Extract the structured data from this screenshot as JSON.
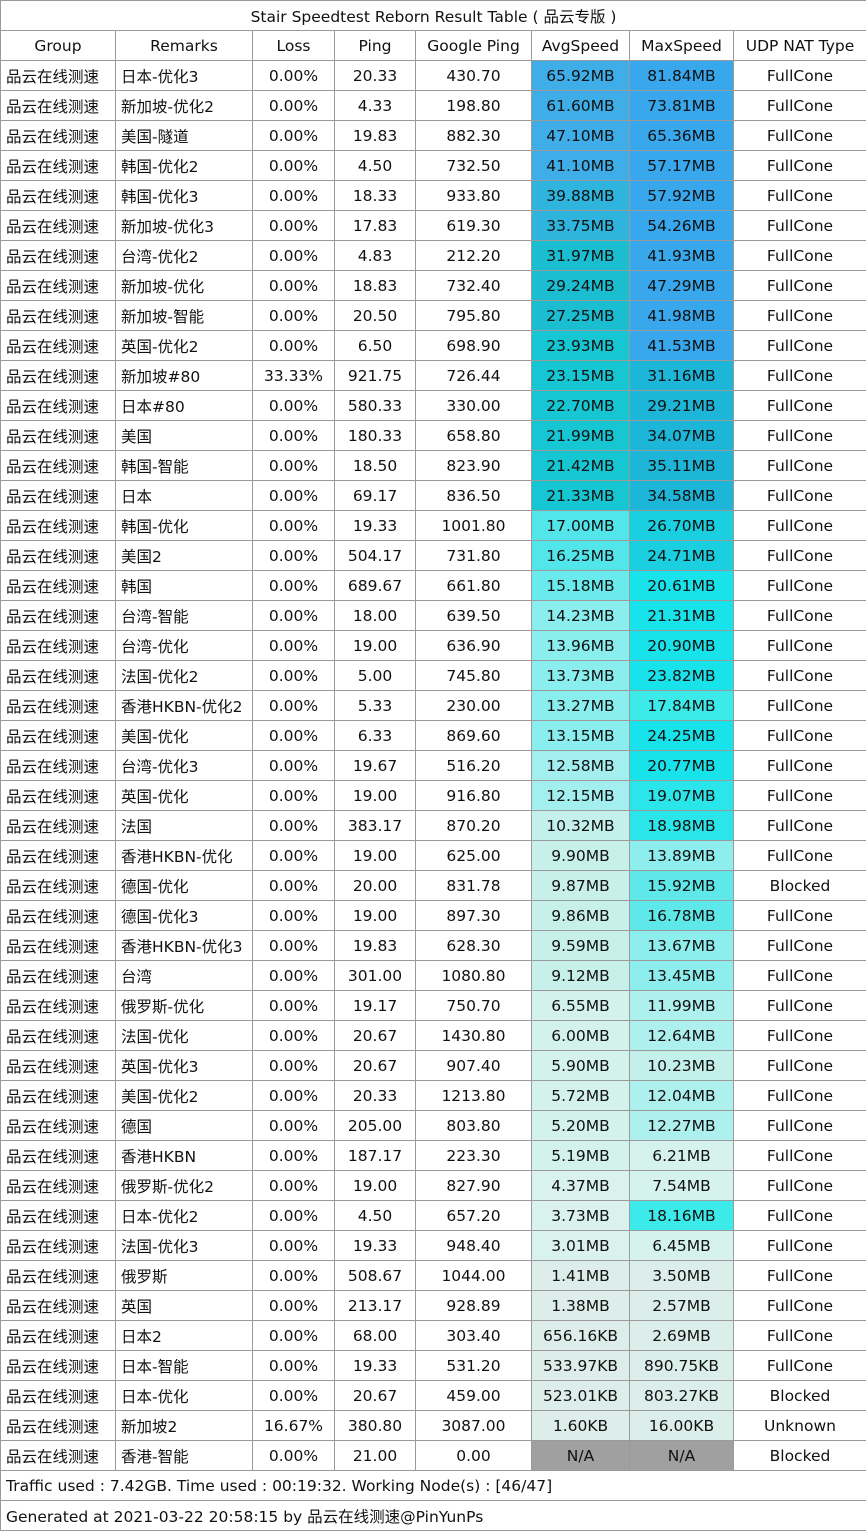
{
  "title": "Stair Speedtest Reborn Result Table ( 品云专版 )",
  "headers": [
    "Group",
    "Remarks",
    "Loss",
    "Ping",
    "Google Ping",
    "AvgSpeed",
    "MaxSpeed",
    "UDP NAT Type"
  ],
  "rows": [
    {
      "group": "品云在线测速",
      "remarks": "日本-优化3",
      "loss": "0.00%",
      "ping": "20.33",
      "gping": "430.70",
      "avg": "65.92MB",
      "max": "81.84MB",
      "nat": "FullCone",
      "avg_color": "#3faee8",
      "max_color": "#38a7ec"
    },
    {
      "group": "品云在线测速",
      "remarks": "新加坡-优化2",
      "loss": "0.00%",
      "ping": "4.33",
      "gping": "198.80",
      "avg": "61.60MB",
      "max": "73.81MB",
      "nat": "FullCone",
      "avg_color": "#3faee8",
      "max_color": "#38a7ec"
    },
    {
      "group": "品云在线测速",
      "remarks": "美国-隧道",
      "loss": "0.00%",
      "ping": "19.83",
      "gping": "882.30",
      "avg": "47.10MB",
      "max": "65.36MB",
      "nat": "FullCone",
      "avg_color": "#3faee8",
      "max_color": "#38a7ec"
    },
    {
      "group": "品云在线测速",
      "remarks": "韩国-优化2",
      "loss": "0.00%",
      "ping": "4.50",
      "gping": "732.50",
      "avg": "41.10MB",
      "max": "57.17MB",
      "nat": "FullCone",
      "avg_color": "#3faee8",
      "max_color": "#38a7ec"
    },
    {
      "group": "品云在线测速",
      "remarks": "韩国-优化3",
      "loss": "0.00%",
      "ping": "18.33",
      "gping": "933.80",
      "avg": "39.88MB",
      "max": "57.92MB",
      "nat": "FullCone",
      "avg_color": "#2fb5dd",
      "max_color": "#38a7ec"
    },
    {
      "group": "品云在线测速",
      "remarks": "新加坡-优化3",
      "loss": "0.00%",
      "ping": "17.83",
      "gping": "619.30",
      "avg": "33.75MB",
      "max": "54.26MB",
      "nat": "FullCone",
      "avg_color": "#2fb5dd",
      "max_color": "#38a7ec"
    },
    {
      "group": "品云在线测速",
      "remarks": "台湾-优化2",
      "loss": "0.00%",
      "ping": "4.83",
      "gping": "212.20",
      "avg": "31.97MB",
      "max": "41.93MB",
      "nat": "FullCone",
      "avg_color": "#1bbdd1",
      "max_color": "#38a7ec"
    },
    {
      "group": "品云在线测速",
      "remarks": "新加坡-优化",
      "loss": "0.00%",
      "ping": "18.83",
      "gping": "732.40",
      "avg": "29.24MB",
      "max": "47.29MB",
      "nat": "FullCone",
      "avg_color": "#1bbdd1",
      "max_color": "#38a7ec"
    },
    {
      "group": "品云在线测速",
      "remarks": "新加坡-智能",
      "loss": "0.00%",
      "ping": "20.50",
      "gping": "795.80",
      "avg": "27.25MB",
      "max": "41.98MB",
      "nat": "FullCone",
      "avg_color": "#1bbdd1",
      "max_color": "#38a7ec"
    },
    {
      "group": "品云在线测速",
      "remarks": "英国-优化2",
      "loss": "0.00%",
      "ping": "6.50",
      "gping": "698.90",
      "avg": "23.93MB",
      "max": "41.53MB",
      "nat": "FullCone",
      "avg_color": "#16c6d3",
      "max_color": "#38a7ec"
    },
    {
      "group": "品云在线测速",
      "remarks": "新加坡#80",
      "loss": "33.33%",
      "ping": "921.75",
      "gping": "726.44",
      "avg": "23.15MB",
      "max": "31.16MB",
      "nat": "FullCone",
      "avg_color": "#16c6d3",
      "max_color": "#1db6d8"
    },
    {
      "group": "品云在线测速",
      "remarks": "日本#80",
      "loss": "0.00%",
      "ping": "580.33",
      "gping": "330.00",
      "avg": "22.70MB",
      "max": "29.21MB",
      "nat": "FullCone",
      "avg_color": "#16c6d3",
      "max_color": "#1db6d8"
    },
    {
      "group": "品云在线测速",
      "remarks": "美国",
      "loss": "0.00%",
      "ping": "180.33",
      "gping": "658.80",
      "avg": "21.99MB",
      "max": "34.07MB",
      "nat": "FullCone",
      "avg_color": "#16c6d3",
      "max_color": "#1db6d8"
    },
    {
      "group": "品云在线测速",
      "remarks": "韩国-智能",
      "loss": "0.00%",
      "ping": "18.50",
      "gping": "823.90",
      "avg": "21.42MB",
      "max": "35.11MB",
      "nat": "FullCone",
      "avg_color": "#16c6d3",
      "max_color": "#1db6d8"
    },
    {
      "group": "品云在线测速",
      "remarks": "日本",
      "loss": "0.00%",
      "ping": "69.17",
      "gping": "836.50",
      "avg": "21.33MB",
      "max": "34.58MB",
      "nat": "FullCone",
      "avg_color": "#16c6d3",
      "max_color": "#1db6d8"
    },
    {
      "group": "品云在线测速",
      "remarks": "韩国-优化",
      "loss": "0.00%",
      "ping": "19.33",
      "gping": "1001.80",
      "avg": "17.00MB",
      "max": "26.70MB",
      "nat": "FullCone",
      "avg_color": "#52e6ea",
      "max_color": "#19cfe0"
    },
    {
      "group": "品云在线测速",
      "remarks": "美国2",
      "loss": "0.00%",
      "ping": "504.17",
      "gping": "731.80",
      "avg": "16.25MB",
      "max": "24.71MB",
      "nat": "FullCone",
      "avg_color": "#52e6ea",
      "max_color": "#19cfe0"
    },
    {
      "group": "品云在线测速",
      "remarks": "韩国",
      "loss": "0.00%",
      "ping": "689.67",
      "gping": "661.80",
      "avg": "15.18MB",
      "max": "20.61MB",
      "nat": "FullCone",
      "avg_color": "#6aeaec",
      "max_color": "#19e3ea"
    },
    {
      "group": "品云在线测速",
      "remarks": "台湾-智能",
      "loss": "0.00%",
      "ping": "18.00",
      "gping": "639.50",
      "avg": "14.23MB",
      "max": "21.31MB",
      "nat": "FullCone",
      "avg_color": "#8aeeee",
      "max_color": "#19e3ea"
    },
    {
      "group": "品云在线测速",
      "remarks": "台湾-优化",
      "loss": "0.00%",
      "ping": "19.00",
      "gping": "636.90",
      "avg": "13.96MB",
      "max": "20.90MB",
      "nat": "FullCone",
      "avg_color": "#8aeeee",
      "max_color": "#19e3ea"
    },
    {
      "group": "品云在线测速",
      "remarks": "法国-优化2",
      "loss": "0.00%",
      "ping": "5.00",
      "gping": "745.80",
      "avg": "13.73MB",
      "max": "23.82MB",
      "nat": "FullCone",
      "avg_color": "#8aeeee",
      "max_color": "#19e3ea"
    },
    {
      "group": "品云在线测速",
      "remarks": "香港HKBN-优化2",
      "loss": "0.00%",
      "ping": "5.33",
      "gping": "230.00",
      "avg": "13.27MB",
      "max": "17.84MB",
      "nat": "FullCone",
      "avg_color": "#8aeeee",
      "max_color": "#3deaea"
    },
    {
      "group": "品云在线测速",
      "remarks": "美国-优化",
      "loss": "0.00%",
      "ping": "6.33",
      "gping": "869.60",
      "avg": "13.15MB",
      "max": "24.25MB",
      "nat": "FullCone",
      "avg_color": "#8aeeee",
      "max_color": "#19e3ea"
    },
    {
      "group": "品云在线测速",
      "remarks": "台湾-优化3",
      "loss": "0.00%",
      "ping": "19.67",
      "gping": "516.20",
      "avg": "12.58MB",
      "max": "20.77MB",
      "nat": "FullCone",
      "avg_color": "#a3efef",
      "max_color": "#19e3ea"
    },
    {
      "group": "品云在线测速",
      "remarks": "英国-优化",
      "loss": "0.00%",
      "ping": "19.00",
      "gping": "916.80",
      "avg": "12.15MB",
      "max": "19.07MB",
      "nat": "FullCone",
      "avg_color": "#a3efef",
      "max_color": "#2ae6ea"
    },
    {
      "group": "品云在线测速",
      "remarks": "法国",
      "loss": "0.00%",
      "ping": "383.17",
      "gping": "870.20",
      "avg": "10.32MB",
      "max": "18.98MB",
      "nat": "FullCone",
      "avg_color": "#c4f0ec",
      "max_color": "#2ae6ea"
    },
    {
      "group": "品云在线测速",
      "remarks": "香港HKBN-优化",
      "loss": "0.00%",
      "ping": "19.00",
      "gping": "625.00",
      "avg": "9.90MB",
      "max": "13.89MB",
      "nat": "FullCone",
      "avg_color": "#c8f0ea",
      "max_color": "#8eeeee"
    },
    {
      "group": "品云在线测速",
      "remarks": "德国-优化",
      "loss": "0.00%",
      "ping": "20.00",
      "gping": "831.78",
      "avg": "9.87MB",
      "max": "15.92MB",
      "nat": "Blocked",
      "avg_color": "#c8f0ea",
      "max_color": "#5ee8ea"
    },
    {
      "group": "品云在线测速",
      "remarks": "德国-优化3",
      "loss": "0.00%",
      "ping": "19.00",
      "gping": "897.30",
      "avg": "9.86MB",
      "max": "16.78MB",
      "nat": "FullCone",
      "avg_color": "#c8f0ea",
      "max_color": "#5ee8ea"
    },
    {
      "group": "品云在线测速",
      "remarks": "香港HKBN-优化3",
      "loss": "0.00%",
      "ping": "19.83",
      "gping": "628.30",
      "avg": "9.59MB",
      "max": "13.67MB",
      "nat": "FullCone",
      "avg_color": "#c8f0ea",
      "max_color": "#8eeeee"
    },
    {
      "group": "品云在线测速",
      "remarks": "台湾",
      "loss": "0.00%",
      "ping": "301.00",
      "gping": "1080.80",
      "avg": "9.12MB",
      "max": "13.45MB",
      "nat": "FullCone",
      "avg_color": "#c8f0ea",
      "max_color": "#8eeeee"
    },
    {
      "group": "品云在线测速",
      "remarks": "俄罗斯-优化",
      "loss": "0.00%",
      "ping": "19.17",
      "gping": "750.70",
      "avg": "6.55MB",
      "max": "11.99MB",
      "nat": "FullCone",
      "avg_color": "#d3f2eb",
      "max_color": "#aef0ee"
    },
    {
      "group": "品云在线测速",
      "remarks": "法国-优化",
      "loss": "0.00%",
      "ping": "20.67",
      "gping": "1430.80",
      "avg": "6.00MB",
      "max": "12.64MB",
      "nat": "FullCone",
      "avg_color": "#d3f2eb",
      "max_color": "#aef0ee"
    },
    {
      "group": "品云在线测速",
      "remarks": "英国-优化3",
      "loss": "0.00%",
      "ping": "20.67",
      "gping": "907.40",
      "avg": "5.90MB",
      "max": "10.23MB",
      "nat": "FullCone",
      "avg_color": "#d3f2eb",
      "max_color": "#c4f0ec"
    },
    {
      "group": "品云在线测速",
      "remarks": "美国-优化2",
      "loss": "0.00%",
      "ping": "20.33",
      "gping": "1213.80",
      "avg": "5.72MB",
      "max": "12.04MB",
      "nat": "FullCone",
      "avg_color": "#d3f2eb",
      "max_color": "#aef0ee"
    },
    {
      "group": "品云在线测速",
      "remarks": "德国",
      "loss": "0.00%",
      "ping": "205.00",
      "gping": "803.80",
      "avg": "5.20MB",
      "max": "12.27MB",
      "nat": "FullCone",
      "avg_color": "#d3f2eb",
      "max_color": "#aef0ee"
    },
    {
      "group": "品云在线测速",
      "remarks": "香港HKBN",
      "loss": "0.00%",
      "ping": "187.17",
      "gping": "223.30",
      "avg": "5.19MB",
      "max": "6.21MB",
      "nat": "FullCone",
      "avg_color": "#d3f2eb",
      "max_color": "#d6f2ec"
    },
    {
      "group": "品云在线测速",
      "remarks": "俄罗斯-优化2",
      "loss": "0.00%",
      "ping": "19.00",
      "gping": "827.90",
      "avg": "4.37MB",
      "max": "7.54MB",
      "nat": "FullCone",
      "avg_color": "#d9f2ed",
      "max_color": "#d6f2ec"
    },
    {
      "group": "品云在线测速",
      "remarks": "日本-优化2",
      "loss": "0.00%",
      "ping": "4.50",
      "gping": "657.20",
      "avg": "3.73MB",
      "max": "18.16MB",
      "nat": "FullCone",
      "avg_color": "#d9f2ed",
      "max_color": "#3deaea"
    },
    {
      "group": "品云在线测速",
      "remarks": "法国-优化3",
      "loss": "0.00%",
      "ping": "19.33",
      "gping": "948.40",
      "avg": "3.01MB",
      "max": "6.45MB",
      "nat": "FullCone",
      "avg_color": "#d9f2ed",
      "max_color": "#d6f2ec"
    },
    {
      "group": "品云在线测速",
      "remarks": "俄罗斯",
      "loss": "0.00%",
      "ping": "508.67",
      "gping": "1044.00",
      "avg": "1.41MB",
      "max": "3.50MB",
      "nat": "FullCone",
      "avg_color": "#ddeeea",
      "max_color": "#dceeea"
    },
    {
      "group": "品云在线测速",
      "remarks": "英国",
      "loss": "0.00%",
      "ping": "213.17",
      "gping": "928.89",
      "avg": "1.38MB",
      "max": "2.57MB",
      "nat": "FullCone",
      "avg_color": "#ddeeea",
      "max_color": "#dceeea"
    },
    {
      "group": "品云在线测速",
      "remarks": "日本2",
      "loss": "0.00%",
      "ping": "68.00",
      "gping": "303.40",
      "avg": "656.16KB",
      "max": "2.69MB",
      "nat": "FullCone",
      "avg_color": "#ddeeea",
      "max_color": "#dceeea"
    },
    {
      "group": "品云在线测速",
      "remarks": "日本-智能",
      "loss": "0.00%",
      "ping": "19.33",
      "gping": "531.20",
      "avg": "533.97KB",
      "max": "890.75KB",
      "nat": "FullCone",
      "avg_color": "#ddeeea",
      "max_color": "#dceeea"
    },
    {
      "group": "品云在线测速",
      "remarks": "日本-优化",
      "loss": "0.00%",
      "ping": "20.67",
      "gping": "459.00",
      "avg": "523.01KB",
      "max": "803.27KB",
      "nat": "Blocked",
      "avg_color": "#ddeeea",
      "max_color": "#dceeea"
    },
    {
      "group": "品云在线测速",
      "remarks": "新加坡2",
      "loss": "16.67%",
      "ping": "380.80",
      "gping": "3087.00",
      "avg": "1.60KB",
      "max": "16.00KB",
      "nat": "Unknown",
      "avg_color": "#ddeeea",
      "max_color": "#dceeea"
    },
    {
      "group": "品云在线测速",
      "remarks": "香港-智能",
      "loss": "0.00%",
      "ping": "21.00",
      "gping": "0.00",
      "avg": "N/A",
      "max": "N/A",
      "nat": "Blocked",
      "avg_color": "#a0a0a0",
      "max_color": "#a0a0a0"
    }
  ],
  "footer_traffic": "Traffic used : 7.42GB. Time used : 00:19:32. Working Node(s) : [46/47]",
  "footer_generated": "Generated at 2021-03-22 20:58:15 by 品云在线测速@PinYunPs"
}
